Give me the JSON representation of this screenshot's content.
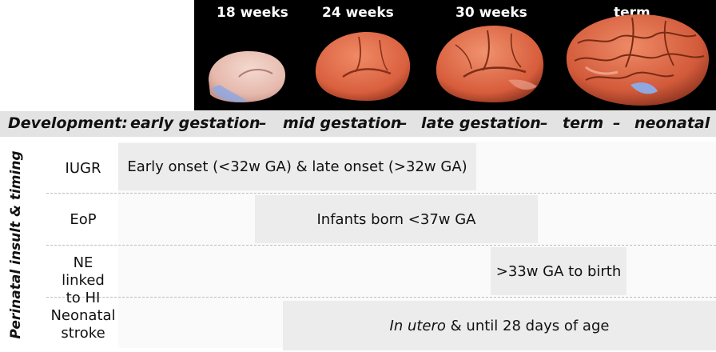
{
  "timeline": {
    "weeks": [
      "18 weeks",
      "24 weeks",
      "30 weeks",
      "term"
    ]
  },
  "development": {
    "label": "Development:",
    "stages": [
      "early gestation",
      "–",
      "mid gestation",
      "–",
      "late gestation",
      "–",
      "term",
      "–",
      "neonatal"
    ]
  },
  "axis": {
    "label": "Perinatal insult & timing"
  },
  "rows": [
    {
      "label": "IUGR",
      "bar_text": "Early onset (<32w GA) & late onset (>32w GA)"
    },
    {
      "label": "EoP",
      "bar_text": "Infants born <37w GA"
    },
    {
      "label_line1": "NE linked",
      "label_line2": "to HI",
      "bar_text": ">33w GA to birth"
    },
    {
      "label_line1": "Neonatal",
      "label_line2": "stroke",
      "bar_text_italic": "In utero",
      "bar_text_rest": " & until 28 days of age"
    }
  ],
  "colors": {
    "panel": "#000000",
    "band": "#e3e3e3",
    "bar": "#ececec",
    "brain_surface": "#d9603f",
    "brain_highlight": "#8fa8e0"
  }
}
